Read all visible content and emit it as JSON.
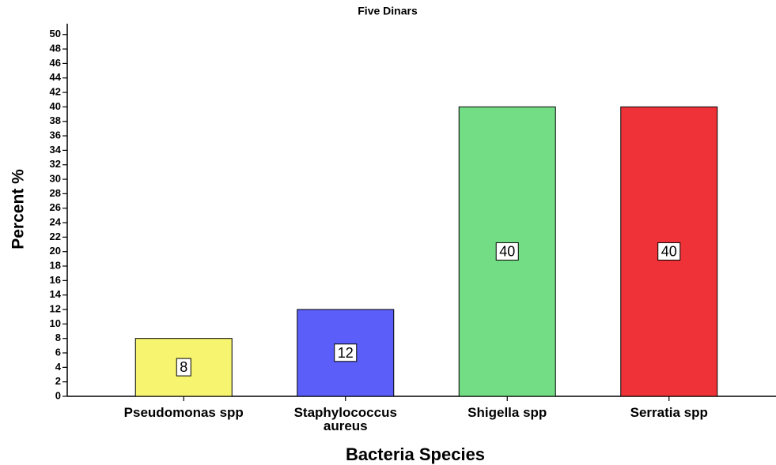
{
  "chart_data": {
    "type": "bar",
    "title": "Five Dinars",
    "x_label": "Bacteria Species",
    "y_label": "Percent %",
    "categories": [
      "Pseudomonas spp",
      "Staphylococcus aureus",
      "Shigella spp",
      "Serratia spp"
    ],
    "values": [
      8,
      12,
      40,
      40
    ],
    "colors": [
      "#f7f46f",
      "#5b5ef8",
      "#72dd85",
      "#ef3238"
    ],
    "ylim": [
      0,
      51.5
    ],
    "yticks": [
      0,
      2,
      4,
      6,
      8,
      10,
      12,
      14,
      16,
      18,
      20,
      22,
      24,
      26,
      28,
      30,
      32,
      34,
      36,
      38,
      40,
      42,
      44,
      46,
      48,
      50
    ],
    "grid": false
  }
}
